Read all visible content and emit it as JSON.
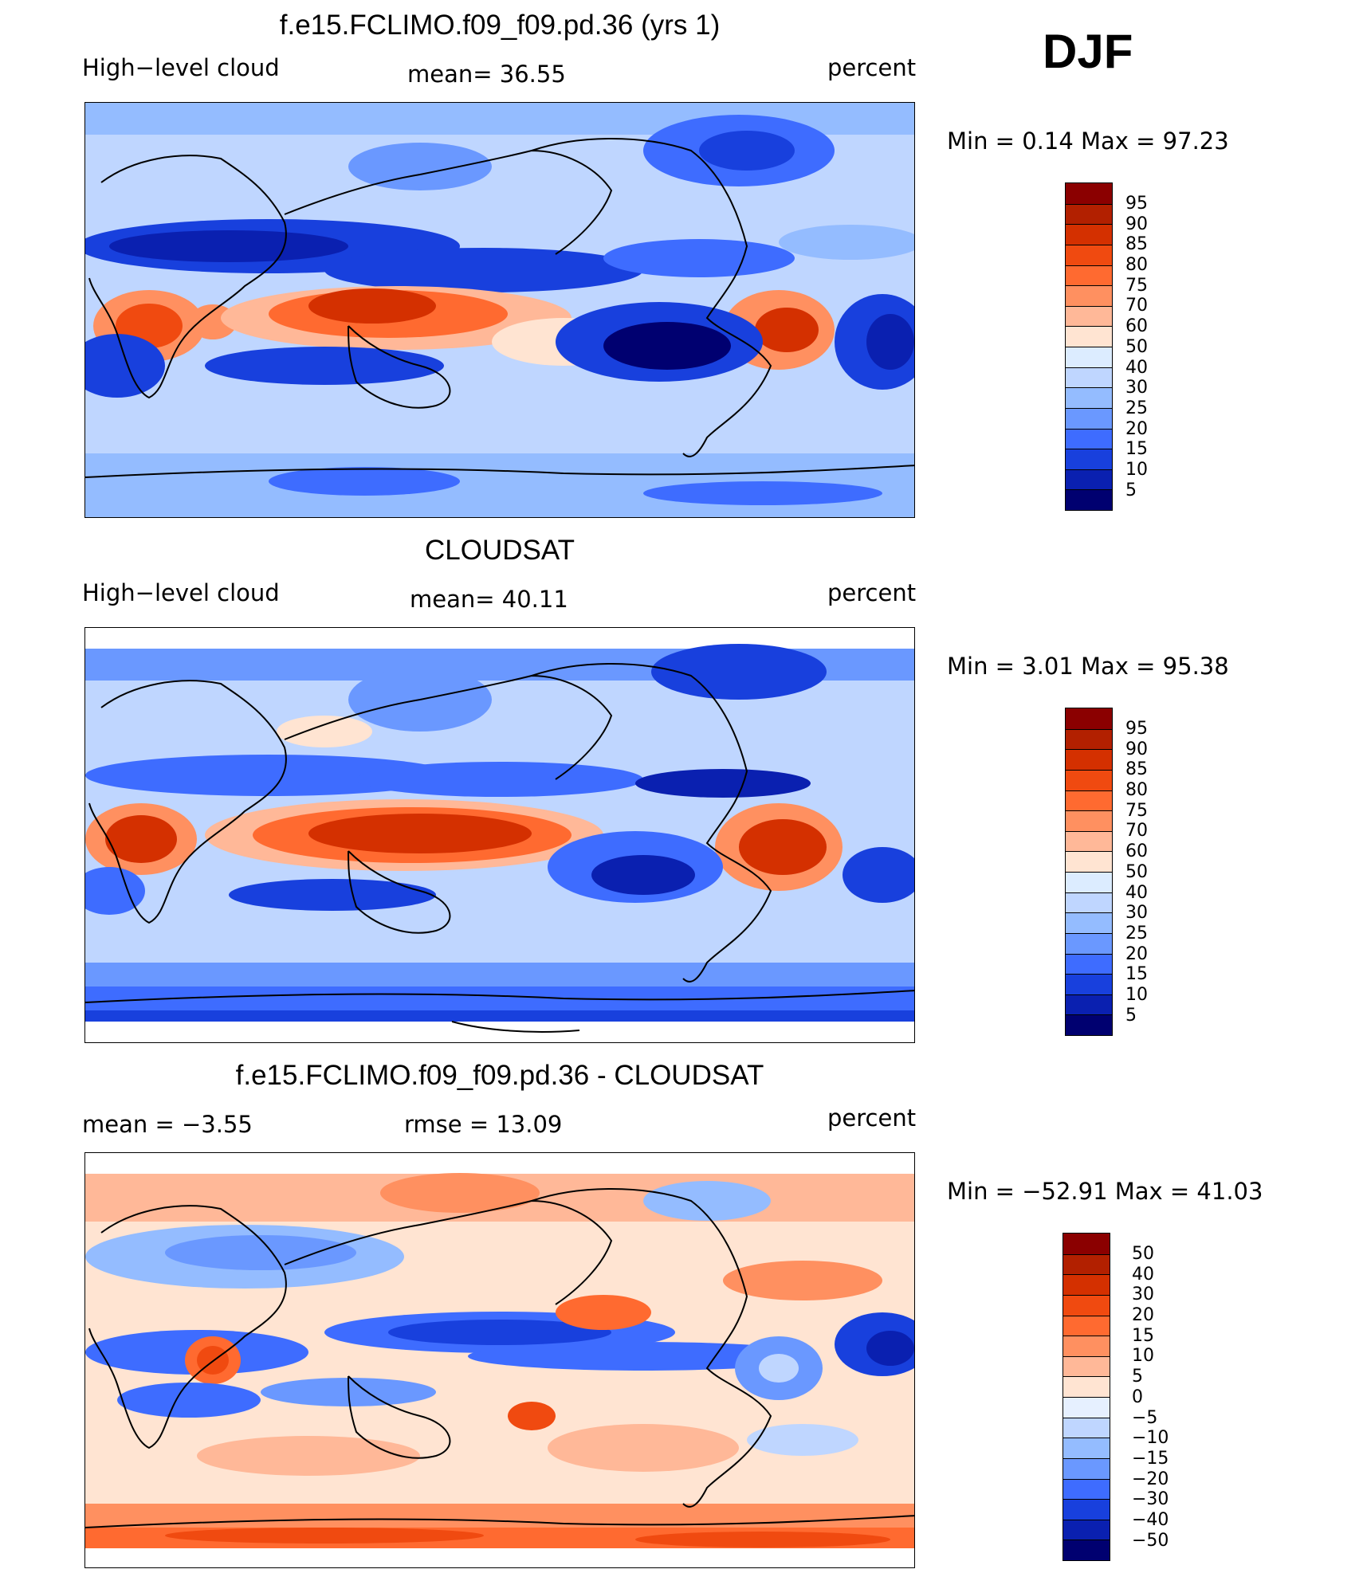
{
  "season": "DJF",
  "panels": [
    {
      "id": "model",
      "title": "f.e15.FCLIMO.f09_f09.pd.36 (yrs 1)",
      "left_label": "High−level cloud",
      "center_label": "mean=   36.55",
      "right_label": "percent",
      "minmax": "Min =     0.14  Max =    97.23",
      "colorbar_levels": [
        "95",
        "90",
        "85",
        "80",
        "75",
        "70",
        "60",
        "50",
        "40",
        "30",
        "25",
        "20",
        "15",
        "10",
        "5"
      ],
      "colors": [
        "#8b0000",
        "#b22000",
        "#d43000",
        "#f04a10",
        "#ff6a30",
        "#ff9060",
        "#ffb898",
        "#ffe4d2",
        "#dcecff",
        "#bfd6ff",
        "#94bcff",
        "#6a98ff",
        "#3e6cff",
        "#1840dd",
        "#0a20b0",
        "#000070"
      ]
    },
    {
      "id": "obs",
      "title": "CLOUDSAT",
      "left_label": "High−level cloud",
      "center_label": "mean=   40.11",
      "right_label": "percent",
      "minmax": "Min =     3.01  Max =    95.38",
      "colorbar_levels": [
        "95",
        "90",
        "85",
        "80",
        "75",
        "70",
        "60",
        "50",
        "40",
        "30",
        "25",
        "20",
        "15",
        "10",
        "5"
      ],
      "colors": [
        "#8b0000",
        "#b22000",
        "#d43000",
        "#f04a10",
        "#ff6a30",
        "#ff9060",
        "#ffb898",
        "#ffe4d2",
        "#dcecff",
        "#bfd6ff",
        "#94bcff",
        "#6a98ff",
        "#3e6cff",
        "#1840dd",
        "#0a20b0",
        "#000070"
      ]
    },
    {
      "id": "diff",
      "title": "f.e15.FCLIMO.f09_f09.pd.36 - CLOUDSAT",
      "left_label": "mean =    −3.55",
      "center_label": "rmse =    13.09",
      "right_label": "percent",
      "minmax": "Min = −52.91  Max =    41.03",
      "colorbar_levels": [
        "50",
        "40",
        "30",
        "20",
        "15",
        "10",
        "5",
        "0",
        "−5",
        "−10",
        "−15",
        "−20",
        "−30",
        "−40",
        "−50"
      ],
      "colors": [
        "#8b0000",
        "#b22000",
        "#d43000",
        "#f04a10",
        "#ff6a30",
        "#ff9060",
        "#ffb898",
        "#ffe4d2",
        "#e6f0ff",
        "#bfd6ff",
        "#94bcff",
        "#6a98ff",
        "#3e6cff",
        "#1840dd",
        "#0a20b0",
        "#000070"
      ]
    }
  ]
}
